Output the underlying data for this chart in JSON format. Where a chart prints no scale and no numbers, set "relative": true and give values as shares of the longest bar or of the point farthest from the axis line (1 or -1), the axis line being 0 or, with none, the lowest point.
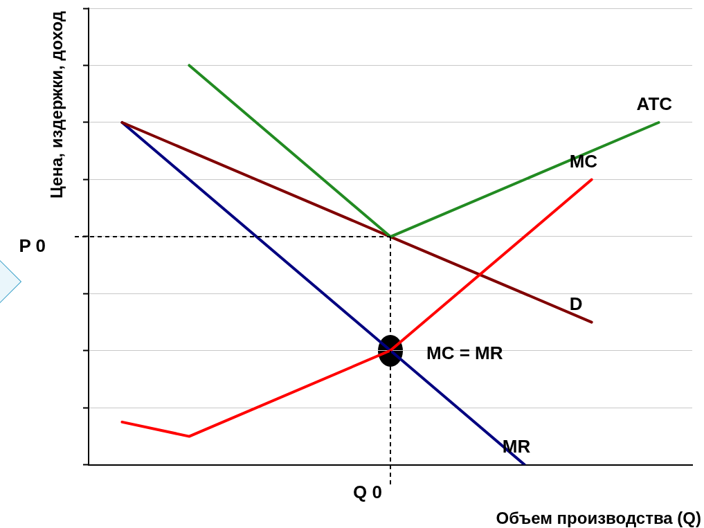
{
  "chart_data": {
    "type": "line",
    "relative": true,
    "xlabel": "Объем производства (Q)",
    "ylabel": "Цена, издержки, доход",
    "categories": [
      null,
      null,
      null,
      null,
      null,
      null,
      null,
      null,
      null
    ],
    "grid": "y",
    "legend": false,
    "marker": "none",
    "line_style": "solid",
    "series": [
      {
        "name": "ATC",
        "color": "#228b22",
        "values": [
          null,
          1,
          null,
          null,
          0.571,
          null,
          null,
          null,
          0.857
        ]
      },
      {
        "name": "MC",
        "color": "#ff0000",
        "values": [
          0.107,
          0.071,
          null,
          null,
          0.286,
          null,
          null,
          0.714,
          null
        ]
      },
      {
        "name": "D",
        "color": "#800000",
        "values": [
          0.857,
          null,
          null,
          null,
          0.571,
          null,
          null,
          0.357,
          null
        ]
      },
      {
        "name": "MR",
        "color": "#000080",
        "values": [
          0.857,
          null,
          null,
          null,
          0.286,
          null,
          0,
          null,
          null
        ]
      }
    ],
    "annotations": [
      "MC = MR",
      "Q 0"
    ],
    "ref_lines": [
      {
        "axis": "y",
        "value": 0.571,
        "label": "P 0",
        "line_style": "dashed",
        "color": "#000000"
      }
    ]
  }
}
